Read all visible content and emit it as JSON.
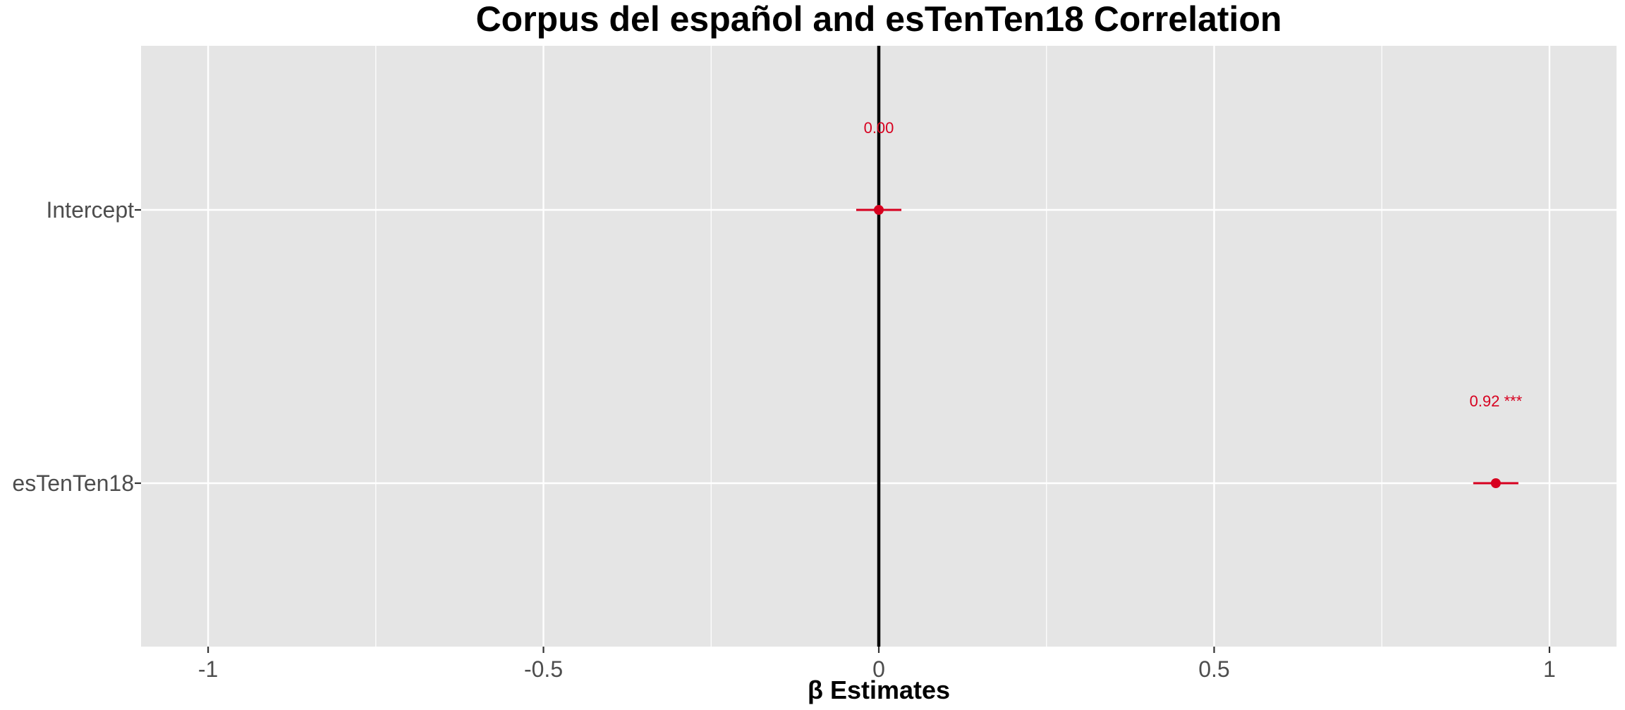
{
  "colors": {
    "panel": "#e5e5e5",
    "grid": "#ffffff",
    "point": "#d7001f",
    "zero_line": "#000000",
    "tick_text": "#4d4d4d"
  },
  "chart_data": {
    "type": "scatter",
    "title": "Corpus del español and esTenTen18 Correlation",
    "xlabel": "β Estimates",
    "ylabel": "",
    "xlim": [
      -1.1,
      1.1
    ],
    "x_ticks": [
      -1,
      -0.5,
      0,
      0.5,
      1
    ],
    "x_tick_labels": [
      "-1",
      "-0.5",
      "0",
      "0.5",
      "1"
    ],
    "x_minor_ticks": [
      -0.75,
      -0.25,
      0.25,
      0.75
    ],
    "grid": true,
    "reference_line": 0,
    "categories": [
      "Intercept",
      "esTenTen18"
    ],
    "estimates": [
      {
        "term": "Intercept",
        "estimate": 0.0,
        "ci_low": -0.02,
        "ci_high": 0.02,
        "label": "0.00"
      },
      {
        "term": "esTenTen18",
        "estimate": 0.92,
        "ci_low": 0.9,
        "ci_high": 0.94,
        "label": "0.92 ***"
      }
    ]
  }
}
